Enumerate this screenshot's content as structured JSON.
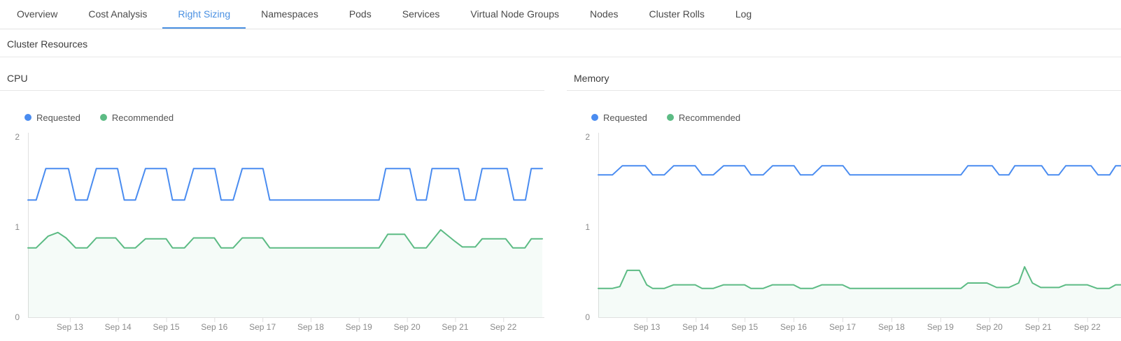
{
  "tabs": [
    "Overview",
    "Cost Analysis",
    "Right Sizing",
    "Namespaces",
    "Pods",
    "Services",
    "Virtual Node Groups",
    "Nodes",
    "Cluster Rolls",
    "Log"
  ],
  "active_tab": "Right Sizing",
  "section_title": "Cluster Resources",
  "colors": {
    "accent": "#4a90e2",
    "requested": "#4a8cf0",
    "recommended": "#5cbb84",
    "recommended_fill": "#5cbb84",
    "axis_line": "#e0e0e0",
    "axis_text": "#8a8a8a"
  },
  "chart_data": [
    {
      "type": "line",
      "title": "CPU",
      "xlabel": "",
      "ylabel": "",
      "ylim": [
        0,
        2
      ],
      "yticks": [
        0,
        1,
        2
      ],
      "grid": false,
      "legend_position": "top-left",
      "x_domain": [
        12.13,
        22.81
      ],
      "xticks": [
        {
          "x": 13,
          "label": "Sep 13"
        },
        {
          "x": 14,
          "label": "Sep 14"
        },
        {
          "x": 15,
          "label": "Sep 15"
        },
        {
          "x": 16,
          "label": "Sep 16"
        },
        {
          "x": 17,
          "label": "Sep 17"
        },
        {
          "x": 18,
          "label": "Sep 18"
        },
        {
          "x": 19,
          "label": "Sep 19"
        },
        {
          "x": 20,
          "label": "Sep 20"
        },
        {
          "x": 21,
          "label": "Sep 21"
        },
        {
          "x": 22,
          "label": "Sep 22"
        }
      ],
      "series": [
        {
          "name": "Requested",
          "color": "#4a8cf0",
          "area": false,
          "points": [
            [
              12.13,
              1.3
            ],
            [
              12.3,
              1.3
            ],
            [
              12.5,
              1.65
            ],
            [
              12.97,
              1.65
            ],
            [
              13.12,
              1.3
            ],
            [
              13.36,
              1.3
            ],
            [
              13.55,
              1.65
            ],
            [
              13.99,
              1.65
            ],
            [
              14.13,
              1.3
            ],
            [
              14.36,
              1.3
            ],
            [
              14.57,
              1.65
            ],
            [
              15.0,
              1.65
            ],
            [
              15.13,
              1.3
            ],
            [
              15.38,
              1.3
            ],
            [
              15.57,
              1.65
            ],
            [
              16.01,
              1.65
            ],
            [
              16.14,
              1.3
            ],
            [
              16.39,
              1.3
            ],
            [
              16.58,
              1.65
            ],
            [
              17.01,
              1.65
            ],
            [
              17.15,
              1.3
            ],
            [
              19.42,
              1.3
            ],
            [
              19.56,
              1.65
            ],
            [
              20.06,
              1.65
            ],
            [
              20.2,
              1.3
            ],
            [
              20.4,
              1.3
            ],
            [
              20.52,
              1.65
            ],
            [
              21.07,
              1.65
            ],
            [
              21.2,
              1.3
            ],
            [
              21.42,
              1.3
            ],
            [
              21.56,
              1.65
            ],
            [
              22.08,
              1.65
            ],
            [
              22.22,
              1.3
            ],
            [
              22.46,
              1.3
            ],
            [
              22.58,
              1.65
            ],
            [
              22.81,
              1.65
            ]
          ]
        },
        {
          "name": "Recommended",
          "color": "#5cbb84",
          "area": true,
          "area_opacity": 0.06,
          "points": [
            [
              12.13,
              0.77
            ],
            [
              12.3,
              0.77
            ],
            [
              12.55,
              0.9
            ],
            [
              12.75,
              0.94
            ],
            [
              12.92,
              0.88
            ],
            [
              13.12,
              0.77
            ],
            [
              13.36,
              0.77
            ],
            [
              13.55,
              0.88
            ],
            [
              13.95,
              0.88
            ],
            [
              14.13,
              0.77
            ],
            [
              14.36,
              0.77
            ],
            [
              14.57,
              0.87
            ],
            [
              15.0,
              0.87
            ],
            [
              15.13,
              0.77
            ],
            [
              15.38,
              0.77
            ],
            [
              15.57,
              0.88
            ],
            [
              16.0,
              0.88
            ],
            [
              16.14,
              0.77
            ],
            [
              16.39,
              0.77
            ],
            [
              16.58,
              0.88
            ],
            [
              17.0,
              0.88
            ],
            [
              17.15,
              0.77
            ],
            [
              19.42,
              0.77
            ],
            [
              19.6,
              0.92
            ],
            [
              19.95,
              0.92
            ],
            [
              20.15,
              0.77
            ],
            [
              20.4,
              0.77
            ],
            [
              20.7,
              0.97
            ],
            [
              21.0,
              0.84
            ],
            [
              21.15,
              0.78
            ],
            [
              21.42,
              0.78
            ],
            [
              21.56,
              0.87
            ],
            [
              22.05,
              0.87
            ],
            [
              22.2,
              0.77
            ],
            [
              22.45,
              0.77
            ],
            [
              22.58,
              0.87
            ],
            [
              22.81,
              0.87
            ]
          ]
        }
      ]
    },
    {
      "type": "line",
      "title": "Memory",
      "xlabel": "",
      "ylabel": "",
      "ylim": [
        0,
        2
      ],
      "yticks": [
        0,
        1,
        2
      ],
      "grid": false,
      "legend_position": "top-left",
      "x_domain": [
        12.01,
        22.69
      ],
      "xticks": [
        {
          "x": 13,
          "label": "Sep 13"
        },
        {
          "x": 14,
          "label": "Sep 14"
        },
        {
          "x": 15,
          "label": "Sep 15"
        },
        {
          "x": 16,
          "label": "Sep 16"
        },
        {
          "x": 17,
          "label": "Sep 17"
        },
        {
          "x": 18,
          "label": "Sep 18"
        },
        {
          "x": 19,
          "label": "Sep 19"
        },
        {
          "x": 20,
          "label": "Sep 20"
        },
        {
          "x": 21,
          "label": "Sep 21"
        },
        {
          "x": 22,
          "label": "Sep 22"
        }
      ],
      "series": [
        {
          "name": "Requested",
          "color": "#4a8cf0",
          "area": false,
          "points": [
            [
              12.01,
              1.58
            ],
            [
              12.3,
              1.58
            ],
            [
              12.5,
              1.68
            ],
            [
              12.97,
              1.68
            ],
            [
              13.12,
              1.58
            ],
            [
              13.36,
              1.58
            ],
            [
              13.55,
              1.68
            ],
            [
              13.99,
              1.68
            ],
            [
              14.13,
              1.58
            ],
            [
              14.36,
              1.58
            ],
            [
              14.57,
              1.68
            ],
            [
              15.0,
              1.68
            ],
            [
              15.13,
              1.58
            ],
            [
              15.38,
              1.58
            ],
            [
              15.57,
              1.68
            ],
            [
              16.01,
              1.68
            ],
            [
              16.14,
              1.58
            ],
            [
              16.39,
              1.58
            ],
            [
              16.58,
              1.68
            ],
            [
              17.01,
              1.68
            ],
            [
              17.15,
              1.58
            ],
            [
              19.42,
              1.58
            ],
            [
              19.56,
              1.68
            ],
            [
              20.06,
              1.68
            ],
            [
              20.2,
              1.58
            ],
            [
              20.4,
              1.58
            ],
            [
              20.52,
              1.68
            ],
            [
              21.07,
              1.68
            ],
            [
              21.2,
              1.58
            ],
            [
              21.42,
              1.58
            ],
            [
              21.56,
              1.68
            ],
            [
              22.08,
              1.68
            ],
            [
              22.22,
              1.58
            ],
            [
              22.46,
              1.58
            ],
            [
              22.58,
              1.68
            ],
            [
              22.69,
              1.68
            ]
          ]
        },
        {
          "name": "Recommended",
          "color": "#5cbb84",
          "area": true,
          "area_opacity": 0.06,
          "points": [
            [
              12.01,
              0.32
            ],
            [
              12.3,
              0.32
            ],
            [
              12.45,
              0.34
            ],
            [
              12.6,
              0.52
            ],
            [
              12.85,
              0.52
            ],
            [
              13.0,
              0.36
            ],
            [
              13.12,
              0.32
            ],
            [
              13.36,
              0.32
            ],
            [
              13.55,
              0.36
            ],
            [
              13.99,
              0.36
            ],
            [
              14.13,
              0.32
            ],
            [
              14.36,
              0.32
            ],
            [
              14.57,
              0.36
            ],
            [
              15.0,
              0.36
            ],
            [
              15.13,
              0.32
            ],
            [
              15.38,
              0.32
            ],
            [
              15.57,
              0.36
            ],
            [
              16.0,
              0.36
            ],
            [
              16.14,
              0.32
            ],
            [
              16.39,
              0.32
            ],
            [
              16.58,
              0.36
            ],
            [
              17.0,
              0.36
            ],
            [
              17.15,
              0.32
            ],
            [
              19.42,
              0.32
            ],
            [
              19.56,
              0.38
            ],
            [
              19.95,
              0.38
            ],
            [
              20.15,
              0.33
            ],
            [
              20.4,
              0.33
            ],
            [
              20.6,
              0.38
            ],
            [
              20.72,
              0.56
            ],
            [
              20.88,
              0.38
            ],
            [
              21.05,
              0.33
            ],
            [
              21.42,
              0.33
            ],
            [
              21.56,
              0.36
            ],
            [
              22.0,
              0.36
            ],
            [
              22.2,
              0.32
            ],
            [
              22.45,
              0.32
            ],
            [
              22.58,
              0.36
            ],
            [
              22.69,
              0.36
            ]
          ]
        }
      ]
    }
  ]
}
